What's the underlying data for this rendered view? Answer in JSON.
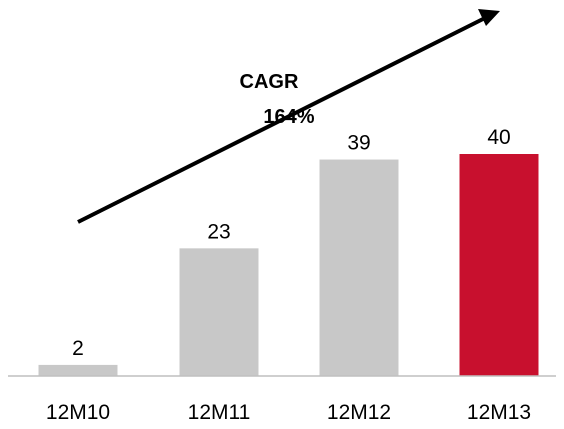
{
  "chart_data": {
    "type": "bar",
    "categories": [
      "12M10",
      "12M11",
      "12M12",
      "12M13"
    ],
    "values": [
      2,
      23,
      39,
      40
    ],
    "ylim": [
      0,
      40
    ],
    "grid": false,
    "annotation": {
      "line1": "CAGR",
      "line2": "164%"
    },
    "colors": {
      "bar_default": "#c8c8c8",
      "bar_highlight": "#c8102e",
      "arrow": "#000000",
      "baseline": "#bfbfbf"
    },
    "highlight_index": 3
  }
}
